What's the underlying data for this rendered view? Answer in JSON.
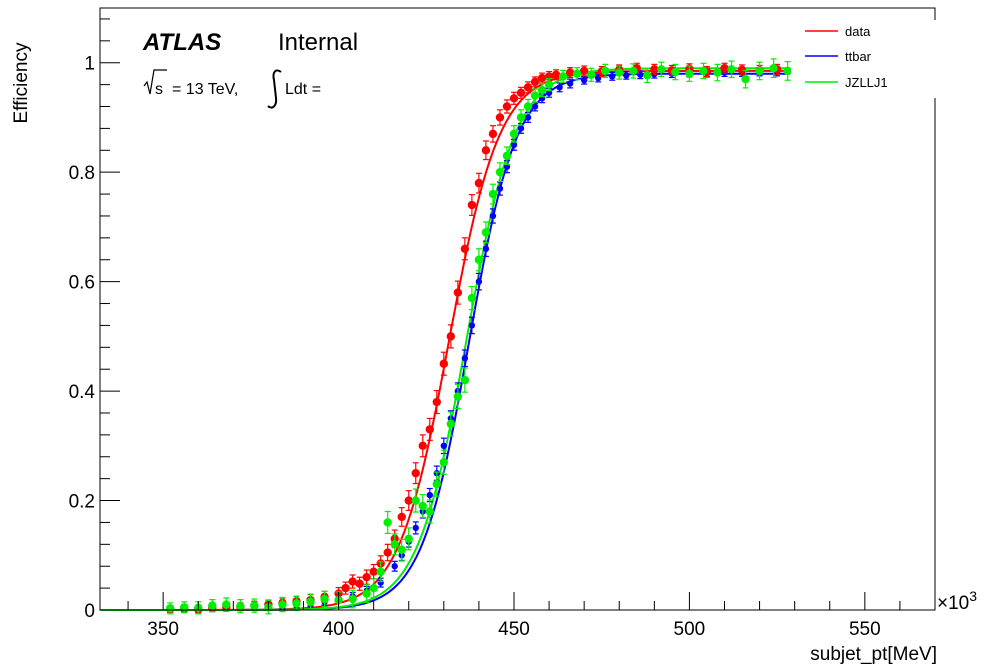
{
  "chart_data": {
    "type": "scatter",
    "title": "",
    "xlabel": "subjet_pt[MeV]",
    "ylabel": "Efficiency",
    "x_multiplier_label": "×10",
    "x_multiplier_exp": "3",
    "xlim": [
      332,
      570
    ],
    "ylim": [
      0,
      1.1
    ],
    "x_ticks": [
      350,
      400,
      450,
      500,
      550
    ],
    "y_ticks": [
      0,
      0.2,
      0.4,
      0.6,
      0.8,
      1
    ],
    "y_tick_labels": [
      "0",
      "0.2",
      "0.4",
      "0.6",
      "0.8",
      "1"
    ],
    "x_tick_labels": [
      "350",
      "400",
      "450",
      "500",
      "550"
    ],
    "grid": false,
    "legend_position": "top-right",
    "annotations": {
      "atlas": "ATLAS",
      "internal": "Internal",
      "sqrt_s": "s",
      "energy": "= 13 TeV,",
      "lumi": "Ldt ="
    },
    "series": [
      {
        "name": "data",
        "color": "#ff0000",
        "fit": {
          "midpoint": 431.5,
          "width": 7.2,
          "plateau": 0.985
        },
        "points": [
          [
            352,
            0.002,
            0.006
          ],
          [
            356,
            0.003,
            0.006
          ],
          [
            360,
            0.001,
            0.006
          ],
          [
            364,
            0.004,
            0.006
          ],
          [
            368,
            0.005,
            0.007
          ],
          [
            372,
            0.006,
            0.007
          ],
          [
            376,
            0.008,
            0.008
          ],
          [
            380,
            0.01,
            0.008
          ],
          [
            384,
            0.013,
            0.009
          ],
          [
            388,
            0.016,
            0.009
          ],
          [
            392,
            0.018,
            0.01
          ],
          [
            396,
            0.024,
            0.01
          ],
          [
            400,
            0.03,
            0.011
          ],
          [
            402,
            0.04,
            0.011
          ],
          [
            404,
            0.052,
            0.012
          ],
          [
            406,
            0.048,
            0.012
          ],
          [
            408,
            0.06,
            0.013
          ],
          [
            410,
            0.07,
            0.013
          ],
          [
            412,
            0.085,
            0.014
          ],
          [
            414,
            0.105,
            0.015
          ],
          [
            416,
            0.13,
            0.016
          ],
          [
            418,
            0.17,
            0.017
          ],
          [
            420,
            0.2,
            0.018
          ],
          [
            422,
            0.25,
            0.019
          ],
          [
            424,
            0.3,
            0.02
          ],
          [
            426,
            0.33,
            0.02
          ],
          [
            428,
            0.38,
            0.021
          ],
          [
            430,
            0.45,
            0.021
          ],
          [
            432,
            0.5,
            0.021
          ],
          [
            434,
            0.58,
            0.021
          ],
          [
            436,
            0.66,
            0.02
          ],
          [
            438,
            0.74,
            0.019
          ],
          [
            440,
            0.78,
            0.018
          ],
          [
            442,
            0.84,
            0.017
          ],
          [
            444,
            0.87,
            0.015
          ],
          [
            446,
            0.9,
            0.014
          ],
          [
            448,
            0.92,
            0.012
          ],
          [
            450,
            0.935,
            0.011
          ],
          [
            452,
            0.945,
            0.01
          ],
          [
            454,
            0.955,
            0.01
          ],
          [
            456,
            0.965,
            0.009
          ],
          [
            458,
            0.972,
            0.009
          ],
          [
            460,
            0.975,
            0.009
          ],
          [
            462,
            0.978,
            0.009
          ],
          [
            466,
            0.982,
            0.009
          ],
          [
            470,
            0.985,
            0.009
          ],
          [
            475,
            0.984,
            0.009
          ],
          [
            480,
            0.987,
            0.009
          ],
          [
            485,
            0.99,
            0.009
          ],
          [
            490,
            0.988,
            0.009
          ],
          [
            495,
            0.986,
            0.009
          ],
          [
            500,
            0.989,
            0.009
          ],
          [
            505,
            0.984,
            0.009
          ],
          [
            510,
            0.99,
            0.009
          ],
          [
            515,
            0.987,
            0.009
          ],
          [
            520,
            0.986,
            0.009
          ],
          [
            525,
            0.988,
            0.009
          ],
          [
            530,
            0.985,
            0.009
          ]
        ]
      },
      {
        "name": "ttbar",
        "color": "#0000ff",
        "fit": {
          "midpoint": 437.2,
          "width": 6.8,
          "plateau": 0.98
        },
        "points": [
          [
            352,
            0.001,
            0.005
          ],
          [
            356,
            0.002,
            0.005
          ],
          [
            360,
            0.002,
            0.005
          ],
          [
            364,
            0.002,
            0.005
          ],
          [
            368,
            0.003,
            0.005
          ],
          [
            372,
            0.004,
            0.005
          ],
          [
            376,
            0.005,
            0.005
          ],
          [
            380,
            0.006,
            0.005
          ],
          [
            384,
            0.008,
            0.006
          ],
          [
            388,
            0.01,
            0.006
          ],
          [
            392,
            0.012,
            0.006
          ],
          [
            396,
            0.015,
            0.006
          ],
          [
            400,
            0.02,
            0.007
          ],
          [
            404,
            0.025,
            0.007
          ],
          [
            408,
            0.035,
            0.008
          ],
          [
            412,
            0.05,
            0.008
          ],
          [
            416,
            0.08,
            0.009
          ],
          [
            418,
            0.1,
            0.01
          ],
          [
            420,
            0.125,
            0.01
          ],
          [
            422,
            0.15,
            0.011
          ],
          [
            424,
            0.18,
            0.012
          ],
          [
            426,
            0.21,
            0.012
          ],
          [
            428,
            0.25,
            0.013
          ],
          [
            430,
            0.3,
            0.014
          ],
          [
            432,
            0.35,
            0.014
          ],
          [
            434,
            0.4,
            0.015
          ],
          [
            436,
            0.46,
            0.015
          ],
          [
            438,
            0.52,
            0.015
          ],
          [
            440,
            0.6,
            0.015
          ],
          [
            442,
            0.66,
            0.014
          ],
          [
            444,
            0.72,
            0.013
          ],
          [
            446,
            0.77,
            0.012
          ],
          [
            448,
            0.81,
            0.011
          ],
          [
            450,
            0.85,
            0.01
          ],
          [
            452,
            0.88,
            0.009
          ],
          [
            454,
            0.9,
            0.009
          ],
          [
            456,
            0.92,
            0.008
          ],
          [
            458,
            0.935,
            0.008
          ],
          [
            460,
            0.945,
            0.008
          ],
          [
            463,
            0.955,
            0.008
          ],
          [
            466,
            0.962,
            0.008
          ],
          [
            470,
            0.968,
            0.007
          ],
          [
            474,
            0.972,
            0.007
          ],
          [
            478,
            0.975,
            0.007
          ],
          [
            482,
            0.977,
            0.007
          ],
          [
            486,
            0.978,
            0.007
          ],
          [
            490,
            0.979,
            0.007
          ],
          [
            495,
            0.98,
            0.007
          ],
          [
            500,
            0.981,
            0.007
          ],
          [
            505,
            0.981,
            0.007
          ],
          [
            510,
            0.982,
            0.007
          ],
          [
            515,
            0.982,
            0.007
          ],
          [
            520,
            0.983,
            0.007
          ],
          [
            525,
            0.983,
            0.007
          ],
          [
            530,
            0.983,
            0.007
          ]
        ]
      },
      {
        "name": "JZLLJ1",
        "color": "#00ee00",
        "fit": {
          "midpoint": 436.5,
          "width": 7.0,
          "plateau": 0.99
        },
        "points": [
          [
            352,
            0.003,
            0.01
          ],
          [
            356,
            0.005,
            0.01
          ],
          [
            360,
            0.004,
            0.011
          ],
          [
            364,
            0.008,
            0.011
          ],
          [
            368,
            0.01,
            0.012
          ],
          [
            372,
            0.007,
            0.012
          ],
          [
            376,
            0.008,
            0.012
          ],
          [
            380,
            0.005,
            0.012
          ],
          [
            384,
            0.01,
            0.013
          ],
          [
            388,
            0.012,
            0.013
          ],
          [
            392,
            0.015,
            0.014
          ],
          [
            396,
            0.02,
            0.014
          ],
          [
            400,
            0.018,
            0.015
          ],
          [
            404,
            0.02,
            0.016
          ],
          [
            408,
            0.03,
            0.016
          ],
          [
            410,
            0.04,
            0.017
          ],
          [
            412,
            0.07,
            0.018
          ],
          [
            414,
            0.16,
            0.02
          ],
          [
            416,
            0.12,
            0.019
          ],
          [
            418,
            0.11,
            0.019
          ],
          [
            420,
            0.13,
            0.02
          ],
          [
            422,
            0.2,
            0.021
          ],
          [
            424,
            0.19,
            0.021
          ],
          [
            426,
            0.18,
            0.021
          ],
          [
            428,
            0.23,
            0.022
          ],
          [
            430,
            0.27,
            0.022
          ],
          [
            432,
            0.34,
            0.022
          ],
          [
            434,
            0.39,
            0.022
          ],
          [
            436,
            0.42,
            0.022
          ],
          [
            438,
            0.57,
            0.021
          ],
          [
            440,
            0.64,
            0.02
          ],
          [
            442,
            0.69,
            0.019
          ],
          [
            444,
            0.76,
            0.018
          ],
          [
            446,
            0.8,
            0.017
          ],
          [
            448,
            0.83,
            0.016
          ],
          [
            450,
            0.87,
            0.015
          ],
          [
            452,
            0.9,
            0.014
          ],
          [
            454,
            0.92,
            0.013
          ],
          [
            456,
            0.94,
            0.012
          ],
          [
            458,
            0.95,
            0.012
          ],
          [
            460,
            0.96,
            0.011
          ],
          [
            464,
            0.975,
            0.011
          ],
          [
            468,
            0.98,
            0.011
          ],
          [
            472,
            0.978,
            0.012
          ],
          [
            476,
            0.985,
            0.012
          ],
          [
            480,
            0.982,
            0.012
          ],
          [
            484,
            0.985,
            0.013
          ],
          [
            488,
            0.977,
            0.013
          ],
          [
            492,
            0.988,
            0.013
          ],
          [
            496,
            0.983,
            0.014
          ],
          [
            500,
            0.98,
            0.014
          ],
          [
            504,
            0.985,
            0.014
          ],
          [
            508,
            0.982,
            0.015
          ],
          [
            512,
            0.988,
            0.015
          ],
          [
            516,
            0.97,
            0.016
          ],
          [
            520,
            0.985,
            0.016
          ],
          [
            524,
            0.99,
            0.017
          ],
          [
            528,
            0.985,
            0.017
          ]
        ]
      }
    ]
  }
}
